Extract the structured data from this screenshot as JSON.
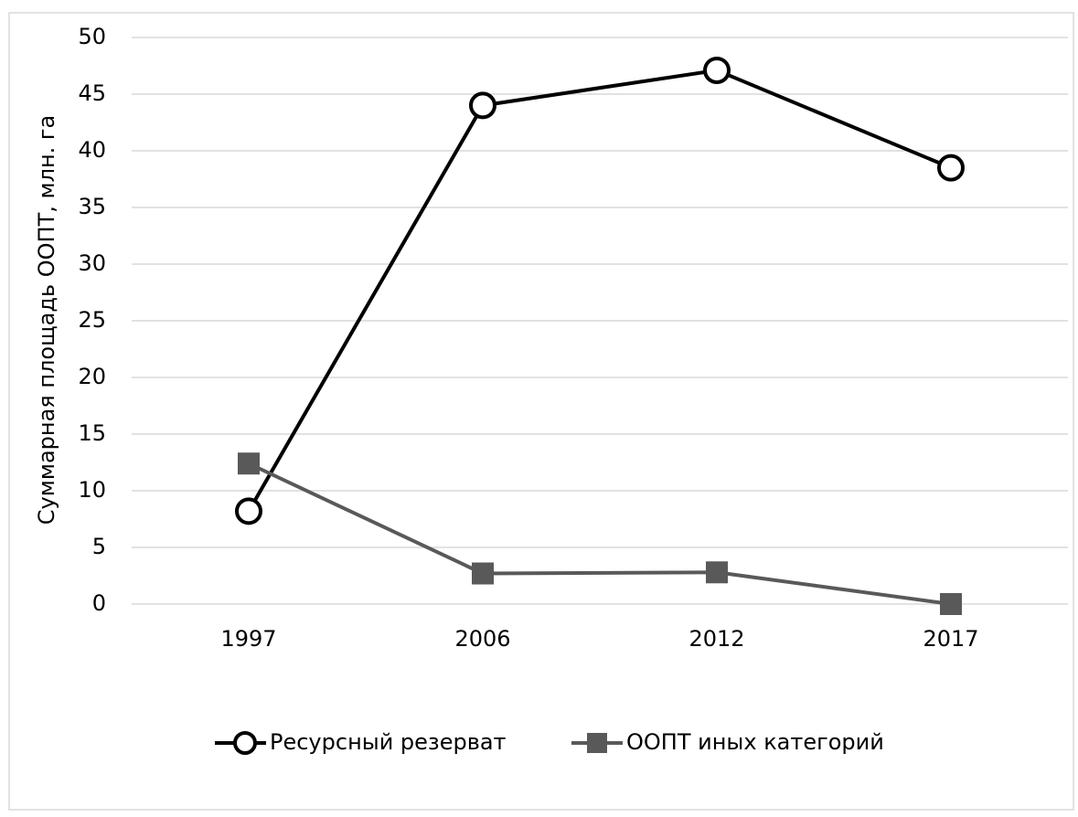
{
  "chart_data": {
    "type": "line",
    "y_label": "Суммарная площадь ООПТ, млн. га",
    "categories": [
      "1997",
      "2006",
      "2012",
      "2017"
    ],
    "series": [
      {
        "name": "Ресурсный резерват",
        "color": "#000000",
        "marker": "circle",
        "values": [
          8.2,
          44,
          47.1,
          38.5
        ]
      },
      {
        "name": "ООПТ иных категорий",
        "color": "#595959",
        "marker": "square",
        "values": [
          12.4,
          2.7,
          2.8,
          0
        ]
      }
    ],
    "ylim": [
      0,
      50
    ],
    "yticks": [
      0,
      5,
      10,
      15,
      20,
      25,
      30,
      35,
      40,
      45,
      50
    ],
    "grid": true,
    "legend": "bottom"
  }
}
